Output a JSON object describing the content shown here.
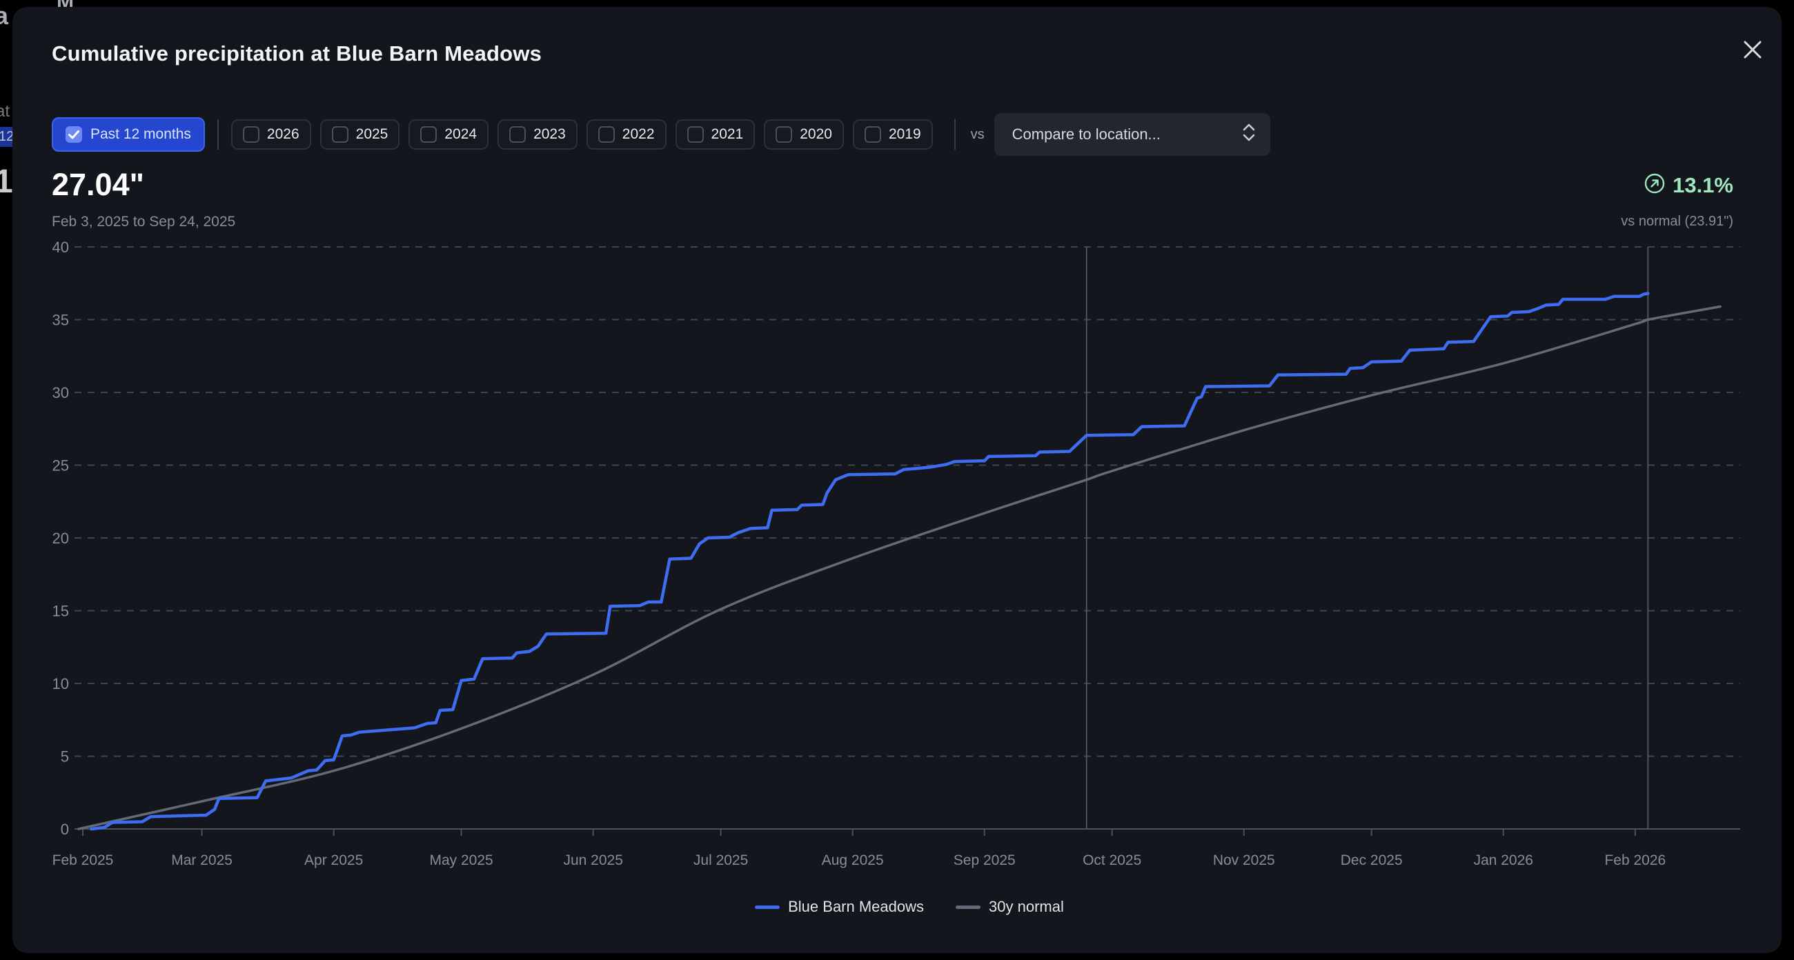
{
  "background_fragments": {
    "f1": "a",
    "f2": "M",
    "f3": "at",
    "f4": "12",
    "f5": "1"
  },
  "modal": {
    "title": "Cumulative precipitation at Blue Barn Meadows"
  },
  "filters": {
    "primary": {
      "label": "Past 12 months",
      "checked": true
    },
    "years": [
      {
        "label": "2026",
        "checked": false
      },
      {
        "label": "2025",
        "checked": false
      },
      {
        "label": "2024",
        "checked": false
      },
      {
        "label": "2023",
        "checked": false
      },
      {
        "label": "2022",
        "checked": false
      },
      {
        "label": "2021",
        "checked": false
      },
      {
        "label": "2020",
        "checked": false
      },
      {
        "label": "2019",
        "checked": false
      }
    ],
    "vs_label": "vs",
    "compare_placeholder": "Compare to location..."
  },
  "summary": {
    "value": "27.04\"",
    "range": "Feb 3, 2025 to Sep 24, 2025",
    "delta_pct": "13.1%",
    "delta_direction": "up",
    "vs_normal": "vs normal (23.91\")"
  },
  "colors": {
    "accent_blue": "#3e6df2",
    "normal_gray": "#646b78",
    "delta_green": "#9fe7bd",
    "grid": "#3f444e",
    "axis": "#4c515b",
    "marker": "#5a606b",
    "tick_text": "#878d98"
  },
  "legend": [
    {
      "label": "Blue Barn Meadows",
      "color": "#3e6df2"
    },
    {
      "label": "30y normal",
      "color": "#646b78"
    }
  ],
  "chart_data": {
    "type": "line",
    "x_unit": "days since Feb 1, 2025",
    "x_domain_days": [
      -2,
      390
    ],
    "ylim": [
      0,
      40
    ],
    "y_ticks": [
      0,
      5,
      10,
      15,
      20,
      25,
      30,
      35,
      40
    ],
    "x_ticks": {
      "labels": [
        "Feb 2025",
        "Mar 2025",
        "Apr 2025",
        "May 2025",
        "Jun 2025",
        "Jul 2025",
        "Aug 2025",
        "Sep 2025",
        "Oct 2025",
        "Nov 2025",
        "Dec 2025",
        "Jan 2026",
        "Feb 2026"
      ],
      "days": [
        0,
        28,
        59,
        89,
        120,
        150,
        181,
        212,
        242,
        273,
        303,
        334,
        365
      ]
    },
    "vertical_markers_days": [
      236,
      368
    ],
    "grid": "dashed-horizontal",
    "legend_position": "bottom-center",
    "series": [
      {
        "name": "Blue Barn Meadows",
        "color": "#3e6df2",
        "style": "step-cumulative",
        "smooth": false,
        "points": [
          [
            2,
            0
          ],
          [
            5,
            0.1
          ],
          [
            7,
            0.45
          ],
          [
            14,
            0.5
          ],
          [
            16,
            0.85
          ],
          [
            29,
            0.95
          ],
          [
            31,
            1.35
          ],
          [
            32,
            2.1
          ],
          [
            41,
            2.15
          ],
          [
            43,
            3.3
          ],
          [
            49,
            3.5
          ],
          [
            53,
            4.0
          ],
          [
            55,
            4.05
          ],
          [
            57,
            4.7
          ],
          [
            59,
            4.75
          ],
          [
            61,
            6.4
          ],
          [
            63,
            6.45
          ],
          [
            65,
            6.65
          ],
          [
            78,
            6.95
          ],
          [
            81,
            7.25
          ],
          [
            83,
            7.3
          ],
          [
            84,
            8.15
          ],
          [
            87,
            8.2
          ],
          [
            89,
            10.2
          ],
          [
            92,
            10.3
          ],
          [
            94,
            11.7
          ],
          [
            101,
            11.75
          ],
          [
            102,
            12.1
          ],
          [
            105,
            12.2
          ],
          [
            107,
            12.55
          ],
          [
            109,
            13.4
          ],
          [
            123,
            13.45
          ],
          [
            124,
            15.3
          ],
          [
            131,
            15.35
          ],
          [
            133,
            15.6
          ],
          [
            136,
            15.6
          ],
          [
            138,
            18.55
          ],
          [
            143,
            18.6
          ],
          [
            145,
            19.6
          ],
          [
            147,
            20.0
          ],
          [
            152,
            20.05
          ],
          [
            154,
            20.35
          ],
          [
            157,
            20.65
          ],
          [
            161,
            20.7
          ],
          [
            162,
            21.9
          ],
          [
            168,
            21.95
          ],
          [
            169,
            22.25
          ],
          [
            174,
            22.3
          ],
          [
            175,
            23.1
          ],
          [
            177,
            24.0
          ],
          [
            180,
            24.35
          ],
          [
            191,
            24.4
          ],
          [
            193,
            24.7
          ],
          [
            199,
            24.85
          ],
          [
            203,
            25.05
          ],
          [
            205,
            25.25
          ],
          [
            212,
            25.3
          ],
          [
            213,
            25.6
          ],
          [
            224,
            25.65
          ],
          [
            225,
            25.9
          ],
          [
            232,
            25.95
          ],
          [
            236,
            27.05
          ],
          [
            247,
            27.1
          ],
          [
            249,
            27.65
          ],
          [
            259,
            27.7
          ],
          [
            262,
            29.6
          ],
          [
            263,
            29.7
          ],
          [
            264,
            30.4
          ],
          [
            279,
            30.45
          ],
          [
            281,
            31.2
          ],
          [
            297,
            31.25
          ],
          [
            298,
            31.65
          ],
          [
            301,
            31.7
          ],
          [
            303,
            32.1
          ],
          [
            310,
            32.15
          ],
          [
            312,
            32.9
          ],
          [
            320,
            33.0
          ],
          [
            321,
            33.45
          ],
          [
            327,
            33.5
          ],
          [
            331,
            35.2
          ],
          [
            335,
            35.25
          ],
          [
            336,
            35.5
          ],
          [
            340,
            35.55
          ],
          [
            342,
            35.75
          ],
          [
            344,
            36.0
          ],
          [
            347,
            36.05
          ],
          [
            348,
            36.4
          ],
          [
            358,
            36.4
          ],
          [
            360,
            36.6
          ],
          [
            366,
            36.6
          ],
          [
            367,
            36.75
          ],
          [
            368,
            36.8
          ]
        ]
      },
      {
        "name": "30y normal",
        "color": "#646b78",
        "style": "smooth-cumulative",
        "smooth": true,
        "points": [
          [
            -1,
            0
          ],
          [
            28,
            1.9
          ],
          [
            59,
            4.0
          ],
          [
            89,
            6.9
          ],
          [
            120,
            10.6
          ],
          [
            150,
            15.1
          ],
          [
            181,
            18.6
          ],
          [
            212,
            21.7
          ],
          [
            235,
            23.9
          ],
          [
            242,
            24.6
          ],
          [
            273,
            27.4
          ],
          [
            303,
            29.8
          ],
          [
            334,
            32.0
          ],
          [
            365,
            34.7
          ],
          [
            368,
            35.0
          ],
          [
            385,
            35.9
          ]
        ]
      }
    ]
  }
}
